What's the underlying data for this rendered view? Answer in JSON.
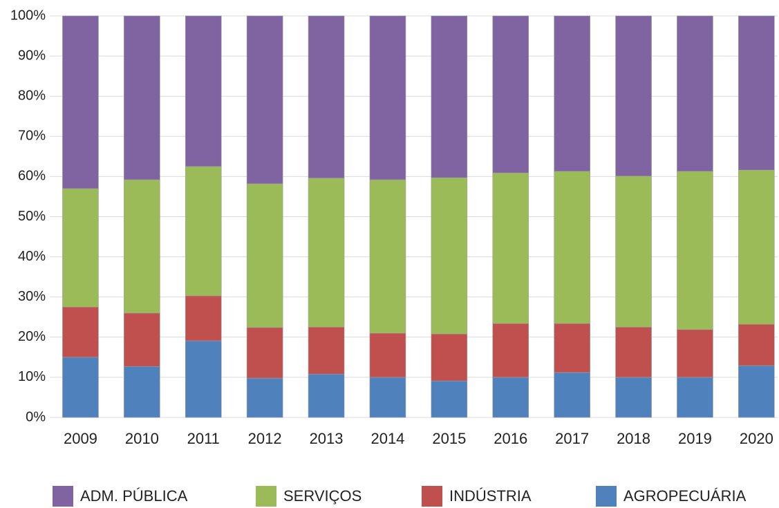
{
  "chart_data": {
    "type": "stacked_bar",
    "categories": [
      "2009",
      "2010",
      "2011",
      "2012",
      "2013",
      "2014",
      "2015",
      "2016",
      "2017",
      "2018",
      "2019",
      "2020"
    ],
    "series": [
      {
        "name": "ADM. PÚBLICA",
        "color": "#8064a2",
        "values": [
          43,
          40.8,
          37.5,
          41.8,
          40.4,
          40.8,
          40.3,
          39.1,
          38.7,
          39.9,
          38.7,
          38.4
        ]
      },
      {
        "name": "SERVIÇOS",
        "color": "#9bbb59",
        "values": [
          29.5,
          33.2,
          32.2,
          35.8,
          37.1,
          38.2,
          38.9,
          37.5,
          37.9,
          37.6,
          39.4,
          38.4
        ]
      },
      {
        "name": "INDÚSTRIA",
        "color": "#c0504d",
        "values": [
          12.5,
          13.3,
          11.2,
          12.6,
          11.7,
          11,
          11.7,
          13.4,
          12.2,
          12.5,
          11.9,
          10.3
        ]
      },
      {
        "name": "AGROPECUÁRIA",
        "color": "#4f81bd",
        "values": [
          15,
          12.7,
          19.1,
          9.8,
          10.8,
          10,
          9.1,
          10,
          11.2,
          10,
          10,
          12.9
        ]
      }
    ],
    "ylim": [
      0,
      100
    ],
    "yticks": [
      {
        "value": 0,
        "label": "0%"
      },
      {
        "value": 10,
        "label": "10%"
      },
      {
        "value": 20,
        "label": "20%"
      },
      {
        "value": 30,
        "label": "30%"
      },
      {
        "value": 40,
        "label": "40%"
      },
      {
        "value": 50,
        "label": "50%"
      },
      {
        "value": 60,
        "label": "60%"
      },
      {
        "value": 70,
        "label": "70%"
      },
      {
        "value": 80,
        "label": "80%"
      },
      {
        "value": 90,
        "label": "90%"
      },
      {
        "value": 100,
        "label": "100%"
      }
    ],
    "grid": true,
    "legend": "bottom"
  }
}
